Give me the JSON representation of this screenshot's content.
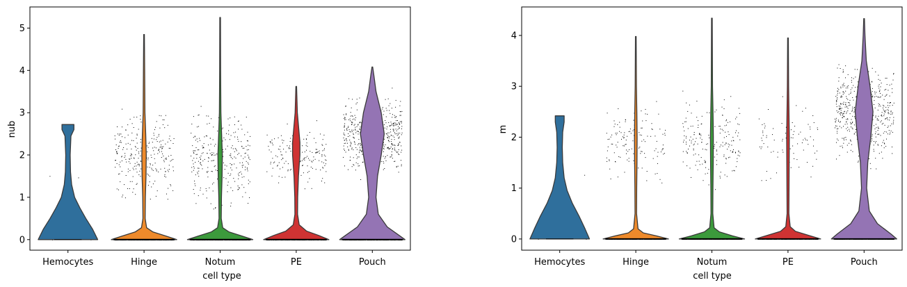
{
  "chart_data": [
    {
      "type": "violin",
      "title": "",
      "xlabel": "cell type",
      "ylabel": "nub",
      "categories": [
        "Hemocytes",
        "Hinge",
        "Notum",
        "PE",
        "Pouch"
      ],
      "colors": [
        "#2f6f9c",
        "#ee8a2b",
        "#3c9a3c",
        "#cf3333",
        "#9474b4"
      ],
      "ylim": [
        -0.25,
        5.5
      ],
      "yticks": [
        "0",
        "1",
        "2",
        "3",
        "4",
        "5"
      ],
      "grid": false,
      "violins": [
        {
          "category": "Hemocytes",
          "max": 2.72,
          "median": 0,
          "profile": [
            [
              0,
              0.4
            ],
            [
              0.25,
              0.33
            ],
            [
              0.5,
              0.24
            ],
            [
              0.75,
              0.16
            ],
            [
              1.0,
              0.09
            ],
            [
              1.3,
              0.05
            ],
            [
              1.6,
              0.035
            ],
            [
              2.0,
              0.03
            ],
            [
              2.45,
              0.04
            ],
            [
              2.6,
              0.08
            ],
            [
              2.72,
              0.08
            ]
          ]
        },
        {
          "category": "Hinge",
          "max": 4.85,
          "median": 0,
          "profile": [
            [
              0,
              0.44
            ],
            [
              0.08,
              0.3
            ],
            [
              0.18,
              0.12
            ],
            [
              0.28,
              0.035
            ],
            [
              0.5,
              0.015
            ],
            [
              1.0,
              0.018
            ],
            [
              1.5,
              0.026
            ],
            [
              2.0,
              0.03
            ],
            [
              2.5,
              0.022
            ],
            [
              3.0,
              0.012
            ],
            [
              4.0,
              0.008
            ],
            [
              4.85,
              0.005
            ]
          ]
        },
        {
          "category": "Notum",
          "max": 5.25,
          "median": 0,
          "profile": [
            [
              0,
              0.44
            ],
            [
              0.08,
              0.3
            ],
            [
              0.18,
              0.12
            ],
            [
              0.28,
              0.035
            ],
            [
              0.5,
              0.015
            ],
            [
              1.0,
              0.018
            ],
            [
              1.5,
              0.026
            ],
            [
              2.0,
              0.03
            ],
            [
              2.5,
              0.02
            ],
            [
              3.0,
              0.01
            ],
            [
              4.0,
              0.007
            ],
            [
              5.25,
              0.005
            ]
          ]
        },
        {
          "category": "PE",
          "max": 3.62,
          "median": 0,
          "profile": [
            [
              0,
              0.44
            ],
            [
              0.1,
              0.3
            ],
            [
              0.2,
              0.14
            ],
            [
              0.35,
              0.04
            ],
            [
              0.6,
              0.018
            ],
            [
              1.0,
              0.02
            ],
            [
              1.5,
              0.03
            ],
            [
              2.0,
              0.05
            ],
            [
              2.3,
              0.05
            ],
            [
              2.7,
              0.03
            ],
            [
              3.0,
              0.015
            ],
            [
              3.62,
              0.005
            ]
          ]
        },
        {
          "category": "Pouch",
          "max": 4.08,
          "median": 2.5,
          "profile": [
            [
              0,
              0.44
            ],
            [
              0.1,
              0.36
            ],
            [
              0.3,
              0.2
            ],
            [
              0.6,
              0.08
            ],
            [
              1.0,
              0.05
            ],
            [
              1.5,
              0.07
            ],
            [
              2.0,
              0.12
            ],
            [
              2.5,
              0.16
            ],
            [
              3.0,
              0.12
            ],
            [
              3.5,
              0.05
            ],
            [
              3.9,
              0.02
            ],
            [
              4.08,
              0.005
            ]
          ]
        }
      ],
      "points": [
        {
          "category": "Hemocytes",
          "n": 4,
          "zero_fraction": 0.6,
          "y_min": 0.5,
          "y_max": 2.8,
          "center": 1.2
        },
        {
          "category": "Hinge",
          "n": 520,
          "zero_fraction": 0.45,
          "y_min": 0.7,
          "y_max": 4.8,
          "center": 2.0
        },
        {
          "category": "Notum",
          "n": 560,
          "zero_fraction": 0.45,
          "y_min": 0.6,
          "y_max": 5.25,
          "center": 1.9
        },
        {
          "category": "PE",
          "n": 340,
          "zero_fraction": 0.45,
          "y_min": 0.7,
          "y_max": 3.6,
          "center": 2.0
        },
        {
          "category": "Pouch",
          "n": 720,
          "zero_fraction": 0.3,
          "y_min": 0.7,
          "y_max": 4.1,
          "center": 2.5
        }
      ]
    },
    {
      "type": "violin",
      "title": "",
      "xlabel": "cell type",
      "ylabel": "m",
      "categories": [
        "Hemocytes",
        "Hinge",
        "Notum",
        "PE",
        "Pouch"
      ],
      "colors": [
        "#2f6f9c",
        "#ee8a2b",
        "#3c9a3c",
        "#cf3333",
        "#9474b4"
      ],
      "ylim": [
        -0.22,
        4.56
      ],
      "yticks": [
        "0",
        "1",
        "2",
        "3",
        "4"
      ],
      "grid": false,
      "violins": [
        {
          "category": "Hemocytes",
          "max": 2.42,
          "median": 0,
          "profile": [
            [
              0,
              0.4
            ],
            [
              0.2,
              0.34
            ],
            [
              0.45,
              0.26
            ],
            [
              0.7,
              0.17
            ],
            [
              0.95,
              0.1
            ],
            [
              1.2,
              0.06
            ],
            [
              1.5,
              0.04
            ],
            [
              1.8,
              0.035
            ],
            [
              2.1,
              0.04
            ],
            [
              2.3,
              0.06
            ],
            [
              2.42,
              0.06
            ]
          ]
        },
        {
          "category": "Hinge",
          "max": 3.98,
          "median": 0,
          "profile": [
            [
              0,
              0.44
            ],
            [
              0.06,
              0.28
            ],
            [
              0.12,
              0.1
            ],
            [
              0.2,
              0.03
            ],
            [
              0.5,
              0.01
            ],
            [
              1.0,
              0.012
            ],
            [
              1.5,
              0.016
            ],
            [
              2.0,
              0.018
            ],
            [
              2.5,
              0.014
            ],
            [
              3.0,
              0.008
            ],
            [
              3.98,
              0.005
            ]
          ]
        },
        {
          "category": "Notum",
          "max": 4.34,
          "median": 0,
          "profile": [
            [
              0,
              0.44
            ],
            [
              0.06,
              0.28
            ],
            [
              0.14,
              0.1
            ],
            [
              0.22,
              0.03
            ],
            [
              0.5,
              0.012
            ],
            [
              1.0,
              0.014
            ],
            [
              1.5,
              0.018
            ],
            [
              2.0,
              0.02
            ],
            [
              2.5,
              0.015
            ],
            [
              3.0,
              0.008
            ],
            [
              4.34,
              0.005
            ]
          ]
        },
        {
          "category": "PE",
          "max": 3.95,
          "median": 0,
          "profile": [
            [
              0,
              0.44
            ],
            [
              0.07,
              0.28
            ],
            [
              0.15,
              0.1
            ],
            [
              0.24,
              0.03
            ],
            [
              0.5,
              0.012
            ],
            [
              1.0,
              0.014
            ],
            [
              1.5,
              0.016
            ],
            [
              2.0,
              0.018
            ],
            [
              2.5,
              0.013
            ],
            [
              3.0,
              0.008
            ],
            [
              3.95,
              0.005
            ]
          ]
        },
        {
          "category": "Pouch",
          "max": 4.33,
          "median": 2.5,
          "profile": [
            [
              0,
              0.44
            ],
            [
              0.1,
              0.36
            ],
            [
              0.3,
              0.18
            ],
            [
              0.55,
              0.07
            ],
            [
              1.0,
              0.035
            ],
            [
              1.5,
              0.05
            ],
            [
              2.0,
              0.09
            ],
            [
              2.5,
              0.12
            ],
            [
              3.0,
              0.08
            ],
            [
              3.5,
              0.03
            ],
            [
              4.0,
              0.012
            ],
            [
              4.33,
              0.005
            ]
          ]
        }
      ],
      "points": [
        {
          "category": "Hemocytes",
          "n": 4,
          "zero_fraction": 0.6,
          "y_min": 0.5,
          "y_max": 2.4,
          "center": 1.2
        },
        {
          "category": "Hinge",
          "n": 330,
          "zero_fraction": 0.55,
          "y_min": 0.8,
          "y_max": 4.0,
          "center": 1.9
        },
        {
          "category": "Notum",
          "n": 420,
          "zero_fraction": 0.5,
          "y_min": 0.7,
          "y_max": 4.35,
          "center": 1.9
        },
        {
          "category": "PE",
          "n": 200,
          "zero_fraction": 0.55,
          "y_min": 0.8,
          "y_max": 3.9,
          "center": 1.9
        },
        {
          "category": "Pouch",
          "n": 720,
          "zero_fraction": 0.3,
          "y_min": 0.7,
          "y_max": 4.35,
          "center": 2.5
        }
      ]
    }
  ]
}
